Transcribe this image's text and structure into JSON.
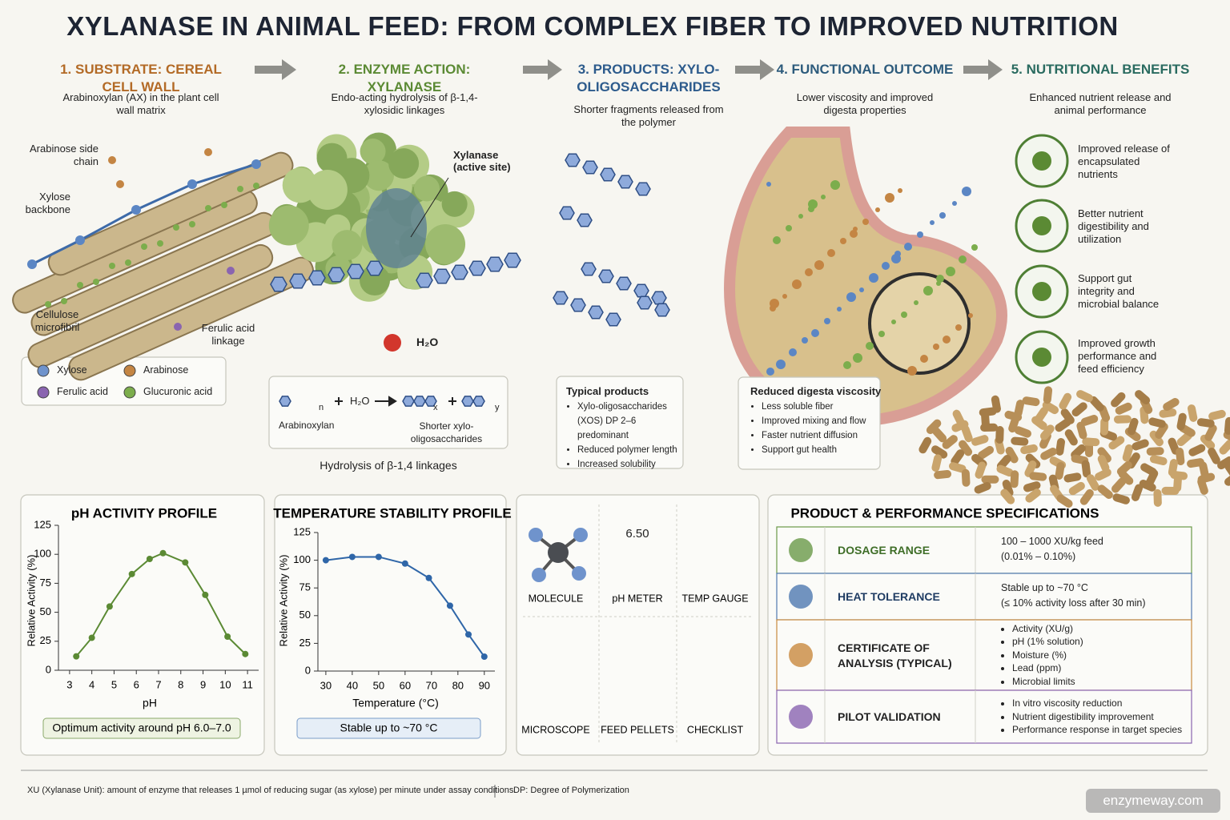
{
  "title": "XYLANASE IN ANIMAL FEED: FROM COMPLEX FIBER TO IMPROVED NUTRITION",
  "steps": [
    {
      "heading": "1. SUBSTRATE: CEREAL CELL WALL",
      "description": "Arabinoxylan (AX) in the plant cell wall matrix"
    },
    {
      "heading": "2. ENZYME ACTION: XYLANASE",
      "description": "Endo-acting hydrolysis of β-1,4-xylosidic linkages"
    },
    {
      "heading": "3. PRODUCTS: XYLO-OLIGOSACCHARIDES",
      "description": "Shorter fragments released from the polymer"
    },
    {
      "heading": "4. FUNCTIONAL OUTCOME",
      "description": "Lower viscosity and improved digesta properties"
    },
    {
      "heading": "5. NUTRITIONAL BENEFITS",
      "description": "Enhanced nutrient release and animal performance"
    }
  ],
  "substrate": {
    "callouts": [
      "Arabinose side chain",
      "Xylose backbone",
      "Cellulose microfibril",
      "Ferulic acid linkage"
    ],
    "legend": [
      {
        "label": "Xylose",
        "color": "#6f93cc"
      },
      {
        "label": "Arabinose",
        "color": "#c48543"
      },
      {
        "label": "Ferulic acid",
        "color": "#8a64b0"
      },
      {
        "label": "Glucuronic acid",
        "color": "#7cad4c"
      }
    ]
  },
  "enzyme": {
    "callout": "Xylanase (active site)",
    "water": "H₂O",
    "equation": {
      "reactant_index": "n",
      "water": "H₂O",
      "product_indices": [
        "x",
        "y"
      ],
      "reactant": "Arabinoxylan",
      "product": "Shorter xylo-oligosaccharides"
    },
    "caption": "Hydrolysis of β-1,4 linkages"
  },
  "products": {
    "title": "Typical products",
    "items": [
      "Xylo-oligosaccharides (XOS) DP 2–6 predominant",
      "Reduced polymer length",
      "Increased solubility"
    ]
  },
  "outcome": {
    "title": "Reduced digesta viscosity",
    "items": [
      "Less soluble fiber",
      "Improved mixing and flow",
      "Faster nutrient diffusion",
      "Support gut health"
    ]
  },
  "benefits": [
    "Improved release of encapsulated nutrients",
    "Better nutrient digestibility and utilization",
    "Support gut integrity and microbial balance",
    "Improved growth performance and feed efficiency"
  ],
  "chart_data": [
    {
      "type": "line",
      "title": "pH ACTIVITY PROFILE",
      "x_label": "pH",
      "y_label": "Relative Activity (%)",
      "x": [
        3.3,
        4,
        4.8,
        5.8,
        6.6,
        7.2,
        8.2,
        9.1,
        10.1,
        10.9
      ],
      "values": [
        12,
        28,
        55,
        83,
        96,
        101,
        93,
        65,
        29,
        14
      ],
      "color": "#5b8a34",
      "xlim": [
        2.5,
        11.5
      ],
      "xticks": [
        3,
        4,
        5,
        6,
        7,
        8,
        9,
        10,
        11
      ],
      "ylim": [
        0,
        125
      ],
      "yticks": [
        0,
        25,
        50,
        75,
        100,
        125
      ],
      "annotation": "Optimum activity around pH 6.0–7.0"
    },
    {
      "type": "line",
      "title": "TEMPERATURE STABILITY PROFILE",
      "x_label": "Temperature (°C)",
      "y_label": "Relative Activity (%)",
      "x": [
        30,
        40,
        50,
        60,
        69,
        77,
        84,
        90
      ],
      "values": [
        100,
        103,
        103,
        97,
        84,
        59,
        33,
        13
      ],
      "color": "#2f66a8",
      "xlim": [
        27,
        94
      ],
      "xticks": [
        30,
        40,
        50,
        60,
        70,
        80,
        90
      ],
      "ylim": [
        0,
        125
      ],
      "yticks": [
        0,
        25,
        50,
        75,
        100,
        125
      ],
      "annotation": "Stable up to ~70 °C"
    }
  ],
  "tools": {
    "meter_reading": "6.50",
    "labels": [
      "MOLECULE",
      "pH METER",
      "TEMP GAUGE",
      "MICROSCOPE",
      "FEED PELLETS",
      "CHECKLIST"
    ]
  },
  "specs": {
    "title": "PRODUCT & PERFORMANCE SPECIFICATIONS",
    "rows": [
      {
        "label": "DOSAGE RANGE",
        "value": [
          "100 – 1000 XU/kg feed",
          "(0.01% – 0.10%)"
        ]
      },
      {
        "label": "HEAT TOLERANCE",
        "value": [
          "Stable up to ~70 °C",
          "(≤ 10% activity loss after 30 min)"
        ]
      },
      {
        "label": "CERTIFICATE OF ANALYSIS (TYPICAL)",
        "items": [
          "Activity (XU/g)",
          "pH (1% solution)",
          "Moisture (%)",
          "Lead (ppm)",
          "Microbial limits"
        ]
      },
      {
        "label": "PILOT VALIDATION",
        "items": [
          "In vitro viscosity reduction",
          "Nutrient digestibility improvement",
          "Performance response in target species"
        ]
      }
    ]
  },
  "footer": {
    "notes": [
      "XU (Xylanase Unit): amount of enzyme that releases 1 µmol of reducing sugar (as xylose) per minute under assay conditions.",
      "DP: Degree of Polymerization"
    ],
    "watermark": "enzymeway.com"
  }
}
